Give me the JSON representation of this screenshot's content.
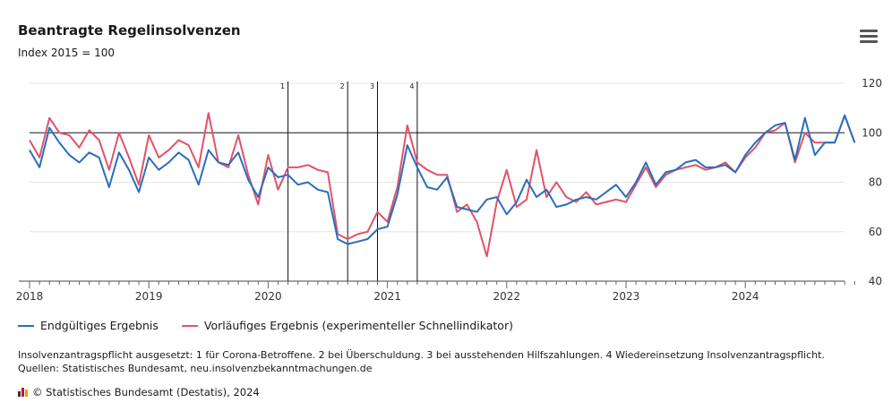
{
  "header": {
    "title": "Beantragte Regelinsolvenzen",
    "subtitle": "Index 2015 = 100"
  },
  "legend": {
    "final_label": "Endgültiges Ergebnis",
    "prelim_label": "Vorläufiges Ergebnis (experimenteller Schnellindikator)"
  },
  "footnotes": {
    "line1": "Insolvenzantragspflicht ausgesetzt: 1 für Corona-Betroffene. 2 bei Überschuldung. 3 bei ausstehenden Hilfszahlungen. 4 Wiedereinsetzung Insolvenzantragspflicht.",
    "line2": "Quellen: Statistisches Bundesamt, neu.insolvenzbekanntmachungen.de"
  },
  "copyright": "© Statistisches Bundesamt (Destatis), 2024",
  "icons": {
    "menu": "hamburger-menu-icon",
    "logo": "destatis-logo-icon"
  },
  "colors": {
    "final": "#2a6ebb",
    "prelim": "#e0526b",
    "reference": "#1a1a1a",
    "grid": "#e6e6e6"
  },
  "chart_data": {
    "type": "line",
    "x_start": "2018-01",
    "x_frequency": "monthly",
    "x_ticks": [
      "2018",
      "2019",
      "2020",
      "2021",
      "2022",
      "2023",
      "2024"
    ],
    "y_ticks": [
      40,
      60,
      80,
      100,
      120
    ],
    "ylim": [
      40,
      120
    ],
    "reference_line": 100,
    "grid": "horizontal",
    "legend_position": "bottom-left",
    "annotations": [
      {
        "label": "1",
        "date": "2020-03"
      },
      {
        "label": "2",
        "date": "2020-09"
      },
      {
        "label": "3",
        "date": "2020-12"
      },
      {
        "label": "4",
        "date": "2021-04"
      }
    ],
    "series": [
      {
        "name": "Endgültiges Ergebnis",
        "color": "#2a6ebb",
        "values": [
          93,
          86,
          102,
          96,
          91,
          88,
          92,
          90,
          78,
          92,
          85,
          76,
          90,
          85,
          88,
          92,
          89,
          79,
          93,
          88,
          87,
          92,
          81,
          74,
          86,
          82,
          83,
          79,
          80,
          77,
          76,
          57,
          55,
          56,
          57,
          61,
          62,
          75,
          95,
          86,
          78,
          77,
          82,
          70,
          69,
          68,
          73,
          74,
          67,
          72,
          81,
          74,
          77,
          70,
          71,
          73,
          74,
          73,
          76,
          79,
          74,
          80,
          88,
          79,
          84,
          85,
          88,
          89,
          86,
          86,
          87,
          84,
          91,
          96,
          100,
          103,
          104,
          89,
          106,
          91,
          96,
          96,
          107,
          96
        ]
      },
      {
        "name": "Vorläufiges Ergebnis (experimenteller Schnellindikator)",
        "color": "#e0526b",
        "values": [
          97,
          90,
          106,
          100,
          99,
          94,
          101,
          97,
          85,
          100,
          90,
          79,
          99,
          90,
          93,
          97,
          95,
          86,
          108,
          88,
          86,
          99,
          83,
          71,
          91,
          77,
          86,
          86,
          87,
          85,
          84,
          59,
          57,
          59,
          60,
          68,
          64,
          78,
          103,
          88,
          85,
          83,
          83,
          68,
          71,
          64,
          50,
          72,
          85,
          70,
          73,
          93,
          74,
          80,
          74,
          72,
          76,
          71,
          72,
          73,
          72,
          79,
          86,
          78,
          83,
          85,
          86,
          87,
          85,
          86,
          88,
          84,
          90,
          94,
          100,
          101,
          104,
          88,
          100,
          96,
          96,
          96,
          107,
          96
        ]
      }
    ]
  }
}
